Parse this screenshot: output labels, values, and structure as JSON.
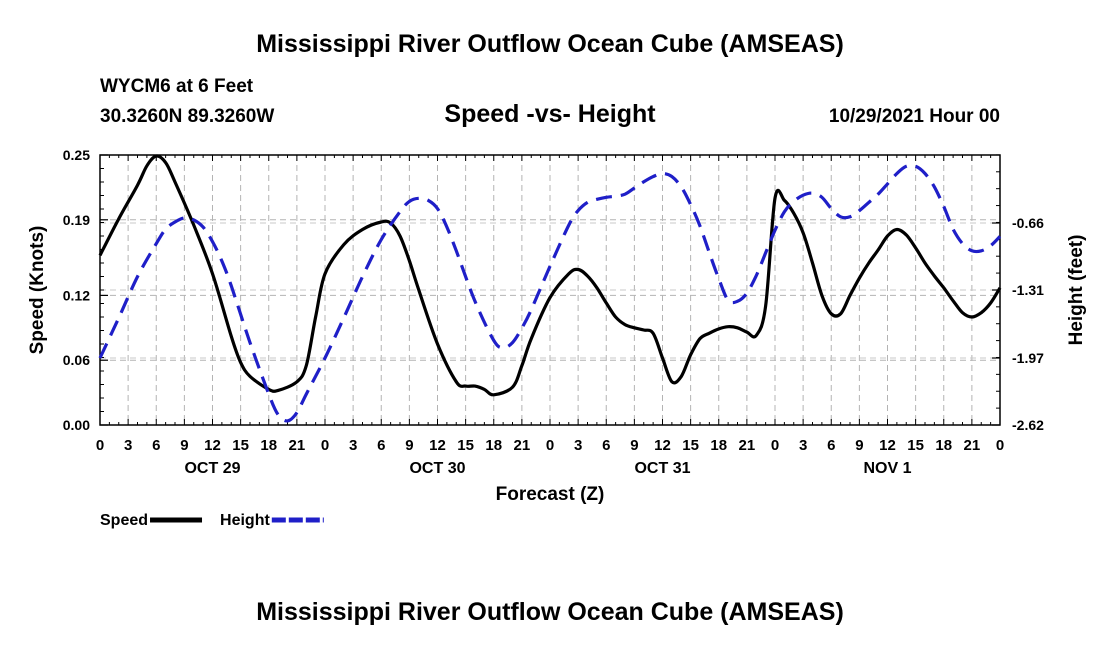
{
  "header": {
    "title": "Mississippi River Outflow Ocean Cube (AMSEAS)",
    "station": "WYCM6 at 6 Feet",
    "coordinates": "30.3260N  89.3260W",
    "subtitle": "Speed -vs- Height",
    "run_time": "10/29/2021 Hour 00"
  },
  "footer": {
    "title": "Mississippi River Outflow Ocean Cube (AMSEAS)"
  },
  "chart_data": {
    "type": "line",
    "title": "Speed -vs- Height",
    "xlabel": "Forecast (Z)",
    "ylabel": "Speed (Knots)",
    "y2label": "Height (feet)",
    "xlim": [
      0,
      96
    ],
    "ylim": [
      0,
      0.25
    ],
    "y2lim": [
      -2.62,
      0
    ],
    "x_ticks": [
      0,
      3,
      6,
      9,
      12,
      15,
      18,
      21,
      24,
      27,
      30,
      33,
      36,
      39,
      42,
      45,
      48,
      51,
      54,
      57,
      60,
      63,
      66,
      69,
      72,
      75,
      78,
      81,
      84,
      87,
      90,
      93,
      96
    ],
    "x_tick_labels": [
      "0",
      "3",
      "6",
      "9",
      "12",
      "15",
      "18",
      "21",
      "0",
      "3",
      "6",
      "9",
      "12",
      "15",
      "18",
      "21",
      "0",
      "3",
      "6",
      "9",
      "12",
      "15",
      "18",
      "21",
      "0",
      "3",
      "6",
      "9",
      "12",
      "15",
      "18",
      "21",
      "0"
    ],
    "day_labels": [
      {
        "x": 12,
        "label": "OCT 29"
      },
      {
        "x": 36,
        "label": "OCT 30"
      },
      {
        "x": 60,
        "label": "OCT 31"
      },
      {
        "x": 84,
        "label": "NOV 1"
      }
    ],
    "y_ticks": [
      0.0,
      0.06,
      0.12,
      0.19,
      0.25
    ],
    "y_tick_labels": [
      "0.00",
      "0.06",
      "0.12",
      "0.19",
      "0.25"
    ],
    "y2_ticks": [
      -0.66,
      -1.31,
      -1.97,
      -2.62
    ],
    "y2_tick_labels": [
      "-0.66",
      "-1.31",
      "-1.97",
      "-2.62"
    ],
    "grid": true,
    "legend": "bottom-left",
    "series": [
      {
        "name": "Speed",
        "axis": "left",
        "color": "#000000",
        "dash": "solid",
        "x": [
          0,
          2,
          4,
          5,
          6,
          7,
          8,
          10,
          12,
          14,
          15,
          16,
          18,
          19,
          21,
          22,
          23,
          24,
          26,
          28,
          30,
          31,
          32,
          33,
          34,
          36,
          38,
          39,
          40,
          41,
          42,
          44,
          45,
          46,
          48,
          50,
          51,
          52,
          53,
          54,
          55,
          56,
          57,
          58,
          59,
          60,
          61,
          62,
          63,
          64,
          65,
          66,
          67,
          68,
          69,
          70,
          71,
          72,
          73,
          74,
          75,
          76,
          77,
          78,
          79,
          80,
          81,
          82,
          83,
          84,
          85,
          86,
          87,
          88,
          89,
          90,
          91,
          92,
          93,
          94,
          95,
          96
        ],
        "values": [
          0.157,
          0.191,
          0.222,
          0.24,
          0.249,
          0.243,
          0.225,
          0.185,
          0.14,
          0.082,
          0.058,
          0.045,
          0.033,
          0.032,
          0.04,
          0.055,
          0.1,
          0.14,
          0.167,
          0.181,
          0.188,
          0.187,
          0.175,
          0.152,
          0.125,
          0.075,
          0.04,
          0.036,
          0.036,
          0.033,
          0.028,
          0.035,
          0.055,
          0.08,
          0.118,
          0.14,
          0.144,
          0.138,
          0.127,
          0.113,
          0.1,
          0.093,
          0.09,
          0.088,
          0.085,
          0.062,
          0.04,
          0.045,
          0.065,
          0.08,
          0.085,
          0.089,
          0.091,
          0.09,
          0.086,
          0.083,
          0.11,
          0.21,
          0.208,
          0.196,
          0.178,
          0.15,
          0.12,
          0.103,
          0.103,
          0.12,
          0.136,
          0.15,
          0.162,
          0.175,
          0.181,
          0.176,
          0.164,
          0.15,
          0.138,
          0.127,
          0.115,
          0.104,
          0.1,
          0.104,
          0.113,
          0.127
        ]
      },
      {
        "name": "Height",
        "axis": "right",
        "color": "#1f1fc8",
        "dash": "dashed",
        "x": [
          0,
          2,
          4,
          6,
          7,
          8,
          9,
          10,
          11,
          12,
          13,
          14,
          16,
          18,
          19,
          20,
          21,
          22,
          24,
          26,
          28,
          30,
          32,
          33,
          34,
          35,
          36,
          37,
          38,
          40,
          42,
          43,
          44,
          45,
          46,
          48,
          50,
          51,
          52,
          53,
          54,
          55,
          56,
          57,
          58,
          59,
          60,
          61,
          62,
          63,
          64,
          65,
          66,
          67,
          68,
          69,
          70,
          71,
          72,
          73,
          74,
          75,
          76,
          77,
          78,
          79,
          80,
          81,
          82,
          83,
          84,
          85,
          86,
          87,
          88,
          89,
          90,
          91,
          92,
          93,
          94,
          95,
          96
        ],
        "values": [
          -1.97,
          -1.58,
          -1.18,
          -0.86,
          -0.72,
          -0.65,
          -0.61,
          -0.63,
          -0.7,
          -0.84,
          -1.03,
          -1.27,
          -1.82,
          -2.32,
          -2.52,
          -2.58,
          -2.5,
          -2.32,
          -1.97,
          -1.58,
          -1.18,
          -0.82,
          -0.55,
          -0.45,
          -0.42,
          -0.44,
          -0.52,
          -0.7,
          -0.93,
          -1.42,
          -1.8,
          -1.87,
          -1.82,
          -1.68,
          -1.5,
          -1.08,
          -0.68,
          -0.54,
          -0.46,
          -0.43,
          -0.41,
          -0.4,
          -0.38,
          -0.32,
          -0.26,
          -0.21,
          -0.18,
          -0.21,
          -0.31,
          -0.48,
          -0.69,
          -0.95,
          -1.2,
          -1.41,
          -1.42,
          -1.34,
          -1.17,
          -0.95,
          -0.73,
          -0.55,
          -0.45,
          -0.39,
          -0.37,
          -0.41,
          -0.52,
          -0.6,
          -0.6,
          -0.54,
          -0.46,
          -0.38,
          -0.28,
          -0.18,
          -0.11,
          -0.11,
          -0.18,
          -0.31,
          -0.5,
          -0.72,
          -0.86,
          -0.93,
          -0.93,
          -0.88,
          -0.79
        ]
      }
    ]
  }
}
